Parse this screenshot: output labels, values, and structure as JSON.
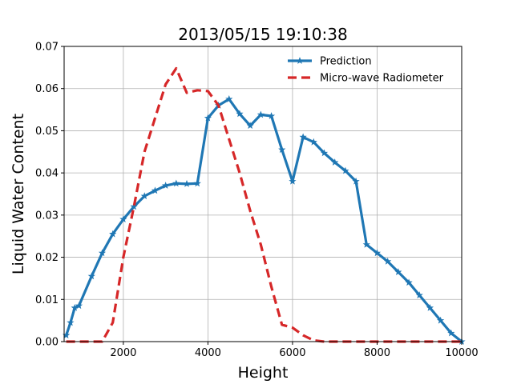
{
  "chart_data": {
    "type": "line",
    "title": "2013/05/15 19:10:38",
    "xlabel": "Height",
    "ylabel": "Liquid Water Content",
    "xlim": [
      600,
      10000
    ],
    "ylim": [
      0,
      0.07
    ],
    "xticks": [
      2000,
      4000,
      6000,
      8000,
      10000
    ],
    "yticks": [
      0.0,
      0.01,
      0.02,
      0.03,
      0.04,
      0.05,
      0.06,
      0.07
    ],
    "xtick_labels": [
      "2000",
      "4000",
      "6000",
      "8000",
      "10000"
    ],
    "ytick_labels": [
      "0.00",
      "0.01",
      "0.02",
      "0.03",
      "0.04",
      "0.05",
      "0.06",
      "0.07"
    ],
    "grid": true,
    "legend_position": "upper-right",
    "series": [
      {
        "name": "Prediction",
        "color": "#1f77b4",
        "style": "solid",
        "marker": "star",
        "x": [
          650,
          750,
          850,
          950,
          1250,
          1500,
          1750,
          2000,
          2250,
          2500,
          2750,
          3000,
          3250,
          3500,
          3750,
          4000,
          4250,
          4500,
          4750,
          5000,
          5250,
          5500,
          5750,
          6000,
          6250,
          6500,
          6750,
          7000,
          7250,
          7500,
          7750,
          8000,
          8250,
          8500,
          8750,
          9000,
          9250,
          9500,
          9750,
          10000
        ],
        "y": [
          0.0015,
          0.0045,
          0.008,
          0.0085,
          0.0155,
          0.021,
          0.0255,
          0.029,
          0.032,
          0.0345,
          0.0358,
          0.037,
          0.0375,
          0.0374,
          0.0375,
          0.053,
          0.056,
          0.0575,
          0.054,
          0.0512,
          0.0538,
          0.0535,
          0.0455,
          0.038,
          0.0485,
          0.0473,
          0.0447,
          0.0425,
          0.0405,
          0.038,
          0.023,
          0.021,
          0.019,
          0.0165,
          0.014,
          0.011,
          0.008,
          0.005,
          0.002,
          0.0
        ]
      },
      {
        "name": "Micro-wave Radiometer",
        "color": "#d62728",
        "style": "dashed",
        "marker": "none",
        "x": [
          650,
          1000,
          1250,
          1500,
          1750,
          2000,
          2250,
          2500,
          2750,
          3000,
          3250,
          3500,
          3750,
          4000,
          4250,
          4500,
          4750,
          5000,
          5250,
          5500,
          5750,
          6000,
          6250,
          6500,
          6750,
          7000,
          7500,
          8000,
          9000,
          10000
        ],
        "y": [
          0.0,
          0.0,
          0.0,
          0.0,
          0.0045,
          0.02,
          0.032,
          0.045,
          0.053,
          0.061,
          0.0648,
          0.059,
          0.0596,
          0.0594,
          0.056,
          0.048,
          0.04,
          0.031,
          0.023,
          0.013,
          0.004,
          0.0033,
          0.0015,
          0.0003,
          0.0,
          0.0,
          0.0,
          0.0,
          0.0,
          0.0
        ]
      }
    ]
  }
}
